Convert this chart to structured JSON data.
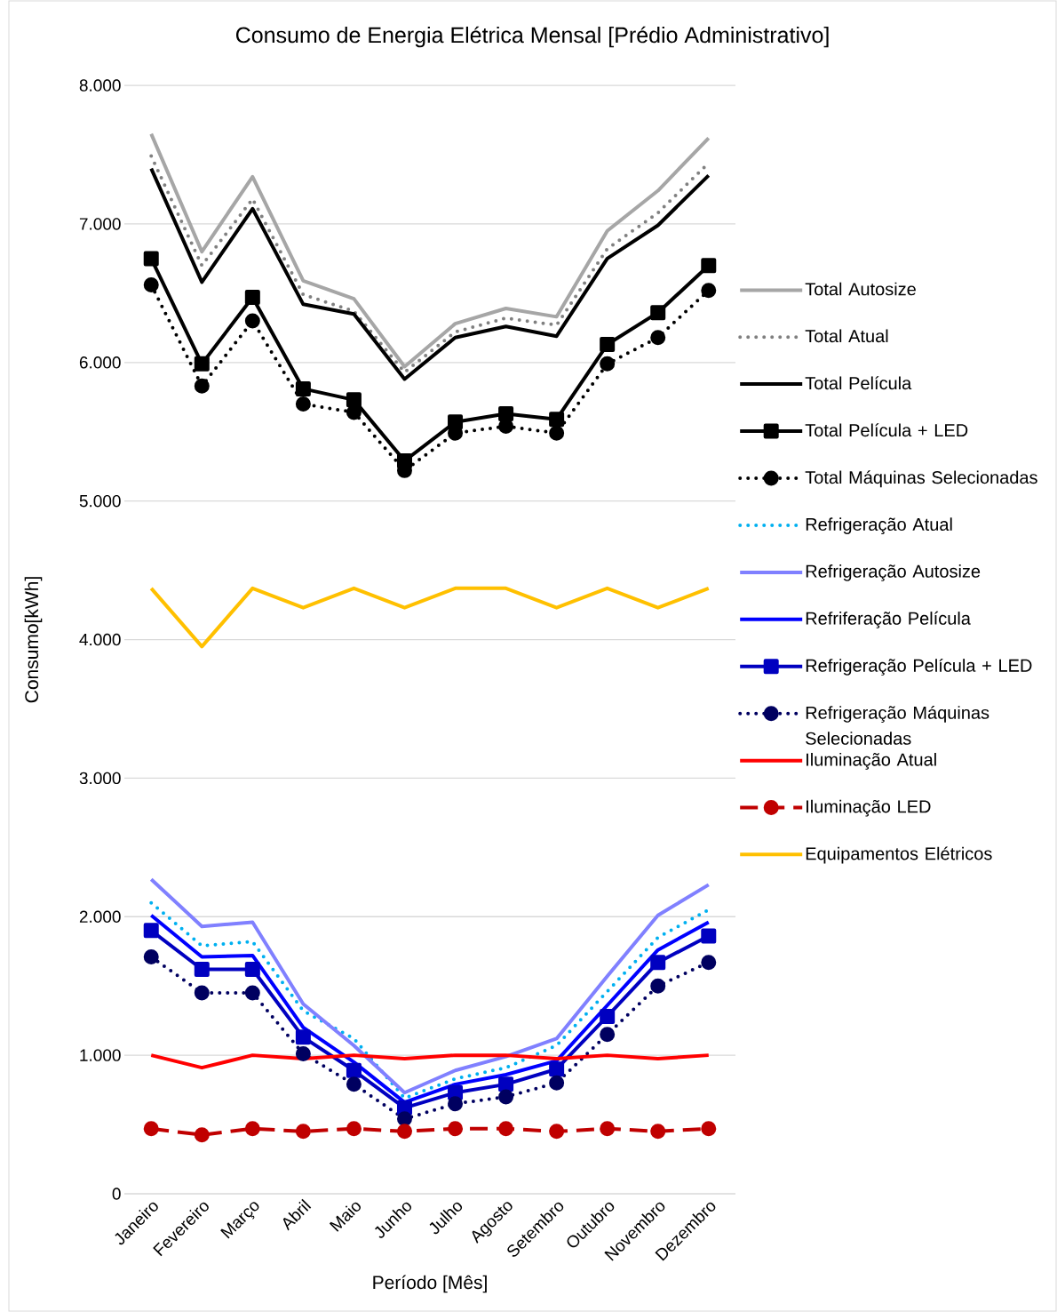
{
  "chart_data": {
    "type": "line",
    "title": "Consumo de Energia Elétrica Mensal [Prédio Administrativo]",
    "xlabel": "Período [Mês]",
    "ylabel": "Consumo[kWh]",
    "categories": [
      "Janeiro",
      "Fevereiro",
      "Março",
      "Abril",
      "Maio",
      "Junho",
      "Julho",
      "Agosto",
      "Setembro",
      "Outubro",
      "Novembro",
      "Dezembro"
    ],
    "ylim": [
      0,
      8000
    ],
    "yticks": [
      {
        "value": 0,
        "label": "0"
      },
      {
        "value": 1000,
        "label": "1.000"
      },
      {
        "value": 2000,
        "label": "2.000"
      },
      {
        "value": 3000,
        "label": "3.000"
      },
      {
        "value": 4000,
        "label": "4.000"
      },
      {
        "value": 5000,
        "label": "5.000"
      },
      {
        "value": 6000,
        "label": "6.000"
      },
      {
        "value": 7000,
        "label": "7.000"
      },
      {
        "value": 8000,
        "label": "8.000"
      }
    ],
    "grid": "y",
    "legend": "right",
    "series": [
      {
        "name": "Total Autosize",
        "color": "#a6a6a6",
        "line_style": "solid",
        "marker": "none",
        "values": [
          7650,
          6800,
          7340,
          6590,
          6460,
          5970,
          6280,
          6390,
          6330,
          6950,
          7240,
          7620
        ]
      },
      {
        "name": "Total Atual",
        "color": "#808080",
        "line_style": "dotted",
        "marker": "none",
        "values": [
          7490,
          6700,
          7180,
          6490,
          6370,
          5930,
          6220,
          6320,
          6270,
          6820,
          7080,
          7440
        ]
      },
      {
        "name": "Total Película",
        "color": "#000000",
        "line_style": "solid",
        "marker": "none",
        "values": [
          7400,
          6580,
          7110,
          6420,
          6350,
          5880,
          6180,
          6260,
          6190,
          6750,
          6990,
          7350
        ]
      },
      {
        "name": "Total Película + LED",
        "color": "#000000",
        "line_style": "solid",
        "marker": "square",
        "values": [
          6750,
          5990,
          6470,
          5810,
          5730,
          5290,
          5570,
          5630,
          5590,
          6130,
          6360,
          6700
        ]
      },
      {
        "name": "Total Máquinas Selecionadas",
        "color": "#000000",
        "line_style": "dotted",
        "marker": "circle",
        "values": [
          6560,
          5830,
          6300,
          5700,
          5640,
          5220,
          5490,
          5540,
          5490,
          5990,
          6180,
          6520
        ]
      },
      {
        "name": "Refrigeração Atual",
        "color": "#00b0f0",
        "line_style": "dotted",
        "marker": "none",
        "values": [
          2100,
          1790,
          1820,
          1320,
          1120,
          690,
          830,
          910,
          1070,
          1460,
          1850,
          2050
        ]
      },
      {
        "name": "Refrigeração Autosize",
        "color": "#8080ff",
        "line_style": "solid",
        "marker": "none",
        "values": [
          2270,
          1930,
          1960,
          1370,
          1070,
          730,
          890,
          990,
          1120,
          1570,
          2010,
          2230
        ]
      },
      {
        "name": "Refriferação Película",
        "color": "#0000ff",
        "line_style": "solid",
        "marker": "none",
        "values": [
          2010,
          1710,
          1720,
          1200,
          950,
          660,
          790,
          860,
          960,
          1360,
          1760,
          1960
        ]
      },
      {
        "name": "Refrigeração Película + LED",
        "color": "#0000c0",
        "line_style": "solid",
        "marker": "square",
        "values": [
          1900,
          1620,
          1620,
          1130,
          890,
          620,
          730,
          790,
          900,
          1280,
          1670,
          1860
        ]
      },
      {
        "name": "Refrigeração Máquinas Selecionadas",
        "color": "#000060",
        "line_style": "dotted",
        "marker": "circle",
        "values": [
          1710,
          1450,
          1450,
          1010,
          790,
          540,
          650,
          700,
          800,
          1150,
          1500,
          1670
        ]
      },
      {
        "name": "Iluminação Atual",
        "color": "#ff0000",
        "line_style": "solid",
        "marker": "none",
        "values": [
          1000,
          910,
          1000,
          975,
          1000,
          975,
          1000,
          1000,
          975,
          1000,
          975,
          1000
        ]
      },
      {
        "name": "Iluminação LED",
        "color": "#c00000",
        "line_style": "dashed",
        "marker": "circle",
        "values": [
          470,
          425,
          470,
          450,
          470,
          450,
          470,
          470,
          450,
          470,
          450,
          470
        ]
      },
      {
        "name": "Equipamentos Elétricos",
        "color": "#ffc000",
        "line_style": "solid",
        "marker": "none",
        "values": [
          4370,
          3950,
          4370,
          4230,
          4370,
          4230,
          4370,
          4370,
          4230,
          4370,
          4230,
          4370
        ]
      }
    ]
  }
}
